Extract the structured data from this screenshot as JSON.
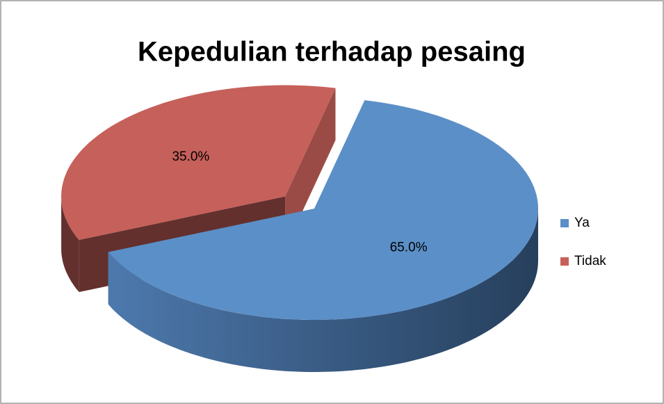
{
  "chart_data": {
    "type": "pie",
    "title": "Kepedulian terhadap pesaing",
    "categories": [
      "Ya",
      "Tidak"
    ],
    "values": [
      65,
      35
    ],
    "value_labels": [
      "65.0%",
      "35.0%"
    ],
    "colors": [
      "#5b8fc7",
      "#c6605a"
    ],
    "exploded": [
      false,
      true
    ],
    "legend": "right"
  }
}
